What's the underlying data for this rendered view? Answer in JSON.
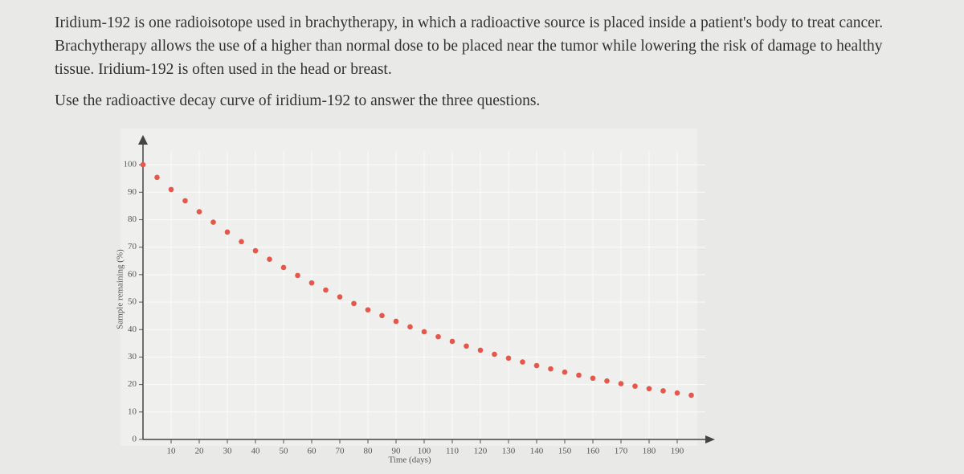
{
  "question": {
    "paragraphs": [
      "Iridium-192 is one radioisotope used in brachytherapy, in which a radioactive source is placed inside a patient's body to treat cancer. Brachytherapy allows the use of a higher than normal dose to be placed near the tumor while lowering the risk of damage to healthy tissue. Iridium-192 is often used in the head or breast.",
      "Use the radioactive decay curve of iridium-192 to answer the three questions."
    ]
  },
  "chart_data": {
    "type": "scatter",
    "x_label": "Time (days)",
    "y_label": "Sample remaining (%)",
    "x": [
      0,
      5,
      10,
      15,
      20,
      25,
      30,
      35,
      40,
      45,
      50,
      55,
      60,
      65,
      70,
      75,
      80,
      85,
      90,
      95,
      100,
      105,
      110,
      115,
      120,
      125,
      130,
      135,
      140,
      145,
      150,
      155,
      160,
      165,
      170,
      175,
      180,
      185,
      190,
      195
    ],
    "series": [
      {
        "color": "#e5564b",
        "values": [
          100,
          95.4,
          91.0,
          86.9,
          82.9,
          79.1,
          75.5,
          72.0,
          68.7,
          65.6,
          62.6,
          59.7,
          57.0,
          54.4,
          51.9,
          49.5,
          47.2,
          45.1,
          43.0,
          41.0,
          39.2,
          37.4,
          35.7,
          34.0,
          32.5,
          31.0,
          29.6,
          28.2,
          26.9,
          25.7,
          24.5,
          23.4,
          22.3,
          21.3,
          20.3,
          19.4,
          18.5,
          17.7,
          16.9,
          16.1
        ]
      }
    ],
    "xlim": [
      0,
      200
    ],
    "ylim": [
      0,
      105
    ],
    "xticks": [
      10,
      20,
      30,
      40,
      50,
      60,
      70,
      80,
      90,
      100,
      110,
      120,
      130,
      140,
      150,
      160,
      170,
      180,
      190
    ],
    "yticks": [
      0,
      10,
      20,
      30,
      40,
      50,
      60,
      70,
      80,
      90,
      100
    ],
    "grid": true
  }
}
